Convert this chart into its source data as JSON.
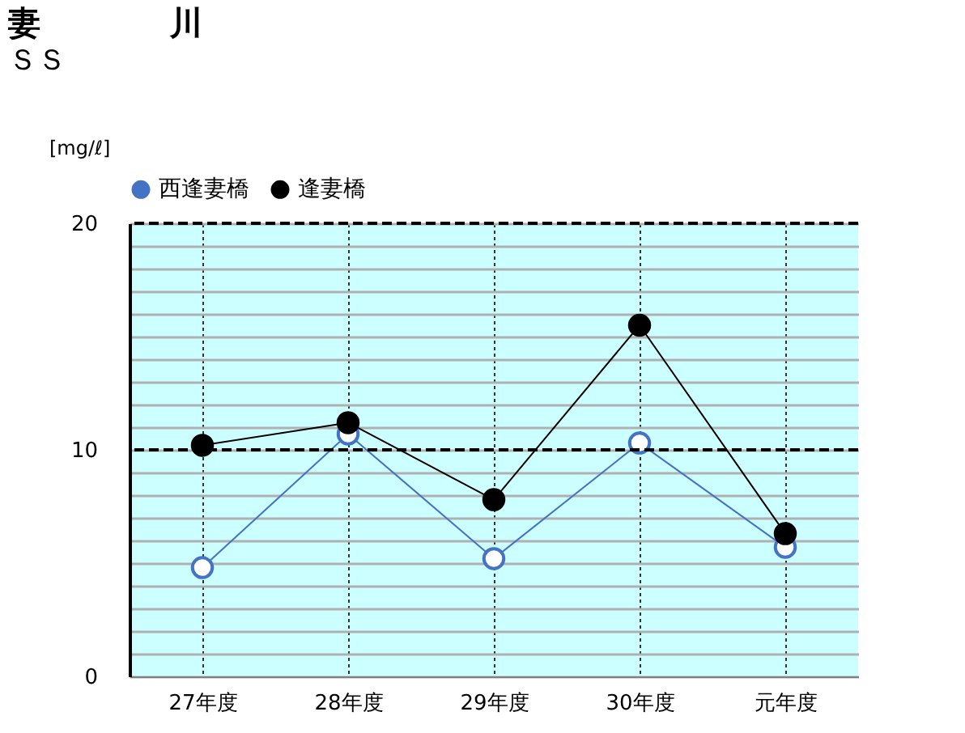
{
  "chart_data": {
    "type": "line",
    "title": "妻　　　　川",
    "subtitle": "ＳＳ",
    "ylabel": "[mg/ℓ]",
    "categories": [
      "27年度",
      "28年度",
      "29年度",
      "30年度",
      "元年度"
    ],
    "series": [
      {
        "name": "西逢妻橋",
        "color": "#4472c4",
        "values": [
          4.8,
          10.7,
          5.2,
          10.3,
          5.7
        ]
      },
      {
        "name": "逢妻橋",
        "color": "#000000",
        "values": [
          10.2,
          11.2,
          7.8,
          15.5,
          6.3
        ]
      }
    ],
    "ylim": [
      0,
      20
    ],
    "yticks": [
      0,
      {
        "value": 1,
        "label": null
      },
      {
        "value": 2,
        "label": null
      },
      {
        "value": 3,
        "label": null
      },
      {
        "value": 4,
        "label": null
      },
      {
        "value": 5,
        "label": null
      },
      {
        "value": 6,
        "label": null
      },
      {
        "value": 7,
        "label": null
      },
      {
        "value": 8,
        "label": null
      },
      {
        "value": 9,
        "label": null
      },
      10,
      {
        "value": 11,
        "label": null
      },
      {
        "value": 12,
        "label": null
      },
      {
        "value": 13,
        "label": null
      },
      {
        "value": 14,
        "label": null
      },
      {
        "value": 15,
        "label": null
      },
      {
        "value": 16,
        "label": null
      },
      {
        "value": 17,
        "label": null
      },
      {
        "value": 18,
        "label": null
      },
      {
        "value": 19,
        "label": null
      },
      20
    ],
    "ref_lines": [
      {
        "axis": "y",
        "value": 10,
        "line_style": "dashed",
        "color": "#000000"
      },
      {
        "axis": "y",
        "value": 20,
        "line_style": "dashed",
        "color": "#000000"
      }
    ],
    "grid": true,
    "legend": "top",
    "marker": "circle",
    "line_style": "solid"
  }
}
